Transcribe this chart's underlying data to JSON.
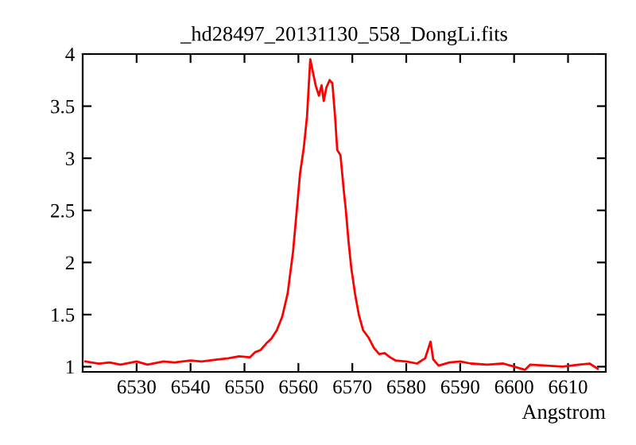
{
  "chart_data": {
    "type": "line",
    "title": "_hd28497_20131130_558_DongLi.fits",
    "xlabel": "Angstrom",
    "xlim": [
      6520,
      6617
    ],
    "ylim": [
      0.95,
      4
    ],
    "xticks": [
      6530,
      6540,
      6550,
      6560,
      6570,
      6580,
      6590,
      6600,
      6610
    ],
    "yticks": [
      1,
      1.5,
      2,
      2.5,
      3,
      3.5,
      4
    ],
    "grid": false,
    "legend": false,
    "series": [
      {
        "color": "#ff0000",
        "x": [
          6520.5,
          6523,
          6525,
          6527,
          6530,
          6532,
          6535,
          6537,
          6540,
          6542,
          6545,
          6547,
          6549,
          6551,
          6552,
          6553,
          6554,
          6555,
          6556,
          6557,
          6558,
          6558.5,
          6559,
          6559.7,
          6560.3,
          6561,
          6561.6,
          6562.2,
          6562.6,
          6563.2,
          6563.8,
          6564.3,
          6564.7,
          6565.2,
          6565.8,
          6566.3,
          6566.8,
          6567.2,
          6567.8,
          6568.4,
          6568.8,
          6569.3,
          6569.8,
          6570.5,
          6571.2,
          6572,
          6573,
          6574,
          6575,
          6576,
          6577,
          6578,
          6580,
          6582,
          6583.5,
          6584.5,
          6585,
          6586,
          6588,
          6590,
          6592,
          6595,
          6598,
          6600,
          6602,
          6603,
          6606,
          6609,
          6612,
          6614,
          6615.5
        ],
        "values": [
          1.05,
          1.03,
          1.04,
          1.02,
          1.05,
          1.02,
          1.05,
          1.04,
          1.06,
          1.05,
          1.07,
          1.08,
          1.1,
          1.09,
          1.14,
          1.16,
          1.22,
          1.27,
          1.35,
          1.48,
          1.7,
          1.9,
          2.1,
          2.5,
          2.85,
          3.1,
          3.4,
          3.95,
          3.85,
          3.7,
          3.6,
          3.7,
          3.55,
          3.68,
          3.75,
          3.72,
          3.4,
          3.08,
          3.03,
          2.7,
          2.5,
          2.2,
          1.95,
          1.7,
          1.5,
          1.35,
          1.28,
          1.18,
          1.12,
          1.13,
          1.09,
          1.06,
          1.05,
          1.03,
          1.08,
          1.24,
          1.07,
          1.01,
          1.04,
          1.05,
          1.03,
          1.02,
          1.03,
          1.0,
          0.97,
          1.02,
          1.01,
          1.0,
          1.02,
          1.03,
          0.98
        ]
      }
    ]
  }
}
